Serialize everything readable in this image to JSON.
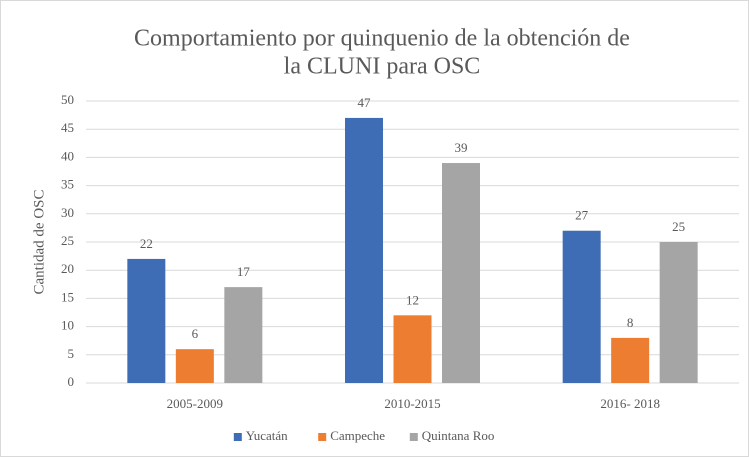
{
  "chart_data": {
    "type": "bar",
    "title": [
      "Comportamiento por quinquenio de la obtención de",
      "la CLUNI para OSC"
    ],
    "y_label": "Cantidad de OSC",
    "categories": [
      "2005-2009",
      "2010-2015",
      "2016- 2018"
    ],
    "series": [
      {
        "name": "Yucatán",
        "color": "#3e6db5",
        "values": [
          22,
          47,
          27
        ]
      },
      {
        "name": "Campeche",
        "color": "#ed7d31",
        "values": [
          6,
          12,
          8
        ]
      },
      {
        "name": "Quintana Roo",
        "color": "#a5a5a5",
        "values": [
          17,
          39,
          25
        ]
      }
    ],
    "ylim": [
      0,
      50
    ],
    "yticks": [
      0,
      5,
      10,
      15,
      20,
      25,
      30,
      35,
      40,
      45,
      50
    ],
    "grid": true,
    "legend": "bottom",
    "data_labels": true
  }
}
